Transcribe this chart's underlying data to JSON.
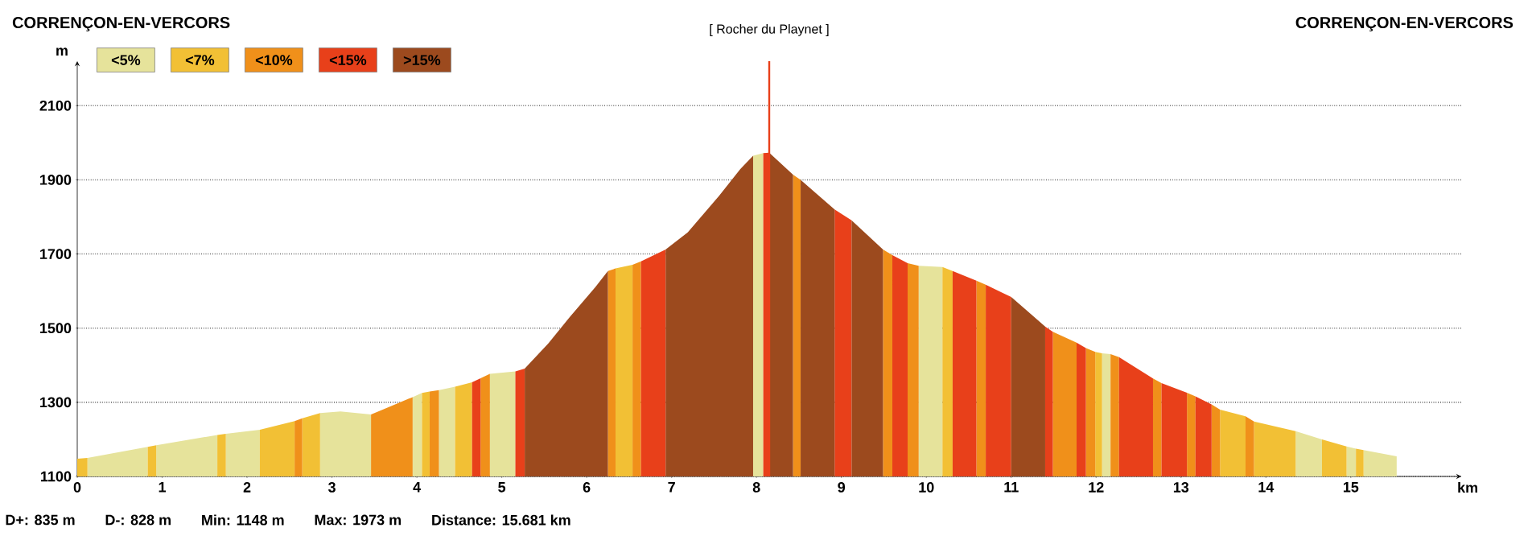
{
  "chart_data": {
    "type": "area",
    "xlabel": "km",
    "ylabel": "m",
    "xlim": [
      0,
      16.3
    ],
    "ylim": [
      1100,
      2220
    ],
    "xticks": [
      0,
      1,
      2,
      3,
      4,
      5,
      6,
      7,
      8,
      9,
      10,
      11,
      12,
      13,
      14,
      15
    ],
    "yticks": [
      1100,
      1300,
      1500,
      1700,
      1900,
      2100
    ],
    "grid": "y",
    "legend": "top left",
    "series": [
      {
        "name": "<5%",
        "color": "#e6e39b",
        "x": [
          0.12,
          0.83,
          null,
          0.93,
          1.65,
          null,
          1.75,
          2.15,
          null,
          2.86,
          3.1,
          3.46,
          null,
          3.95,
          4.06,
          null,
          4.26,
          4.45,
          null,
          4.86,
          5.16,
          null,
          7.96,
          8.08,
          null,
          9.91,
          10.19,
          null,
          12.07,
          12.17,
          null,
          14.35,
          14.66,
          null,
          14.95,
          15.06,
          null,
          15.15,
          15.54
        ],
        "values": [
          1150,
          1180,
          null,
          1184,
          1212,
          null,
          1215,
          1226,
          null,
          1271,
          1275,
          1267,
          null,
          1314,
          1325,
          null,
          1333,
          1342,
          null,
          1377,
          1383,
          null,
          1965,
          1972,
          null,
          1668,
          1665,
          null,
          1432,
          1430,
          null,
          1222,
          1200,
          null,
          1181,
          1175,
          null,
          1171,
          1154
        ]
      },
      {
        "name": "<7%",
        "color": "#f2c035",
        "x": [
          0,
          0.12,
          null,
          0.83,
          0.93,
          null,
          1.65,
          1.75,
          null,
          2.15,
          2.56,
          null,
          2.65,
          2.86,
          null,
          4.06,
          4.15,
          null,
          4.45,
          4.65,
          null,
          6.34,
          6.54,
          null,
          10.19,
          10.31,
          null,
          11.99,
          12.07,
          null,
          13.46,
          13.76,
          null,
          13.86,
          14.35,
          null,
          14.66,
          14.95,
          null,
          15.06,
          15.15
        ],
        "values": [
          1148,
          1150,
          null,
          1180,
          1184,
          null,
          1212,
          1215,
          null,
          1226,
          1249,
          null,
          1257,
          1271,
          null,
          1325,
          1329,
          null,
          1342,
          1354,
          null,
          1661,
          1671,
          null,
          1665,
          1654,
          null,
          1436,
          1432,
          null,
          1280,
          1262,
          null,
          1248,
          1222,
          null,
          1200,
          1181,
          null,
          1175,
          1171
        ]
      },
      {
        "name": "<10%",
        "color": "#f0901a",
        "x": [
          2.56,
          2.65,
          null,
          3.46,
          3.95,
          null,
          4.15,
          4.26,
          null,
          4.75,
          4.86,
          null,
          6.25,
          6.34,
          null,
          6.54,
          6.64,
          null,
          8.43,
          8.52,
          null,
          9.49,
          9.6,
          null,
          9.78,
          9.91,
          null,
          10.59,
          10.7,
          null,
          11.49,
          11.77,
          null,
          11.88,
          11.99,
          null,
          12.17,
          12.27,
          null,
          12.67,
          12.77,
          null,
          13.07,
          13.17,
          null,
          13.36,
          13.46,
          null,
          13.76,
          13.86
        ],
        "values": [
          1249,
          1257,
          null,
          1267,
          1314,
          null,
          1329,
          1333,
          null,
          1365,
          1377,
          null,
          1654,
          1661,
          null,
          1671,
          1680,
          null,
          1914,
          1900,
          null,
          1712,
          1697,
          null,
          1675,
          1668,
          null,
          1628,
          1617,
          null,
          1490,
          1461,
          null,
          1446,
          1436,
          null,
          1430,
          1422,
          null,
          1364,
          1352,
          null,
          1326,
          1316,
          null,
          1294,
          1280,
          null,
          1262,
          1248
        ]
      },
      {
        "name": "<15%",
        "color": "#e8401a",
        "x": [
          4.65,
          4.75,
          null,
          5.16,
          5.27,
          null,
          6.64,
          6.93,
          null,
          8.08,
          8.15,
          null,
          8.92,
          9.12,
          null,
          9.6,
          9.78,
          null,
          10.31,
          10.59,
          null,
          10.7,
          10.9,
          11.0,
          null,
          11.4,
          11.49,
          null,
          11.77,
          11.88,
          null,
          12.27,
          12.67,
          null,
          12.77,
          13.07,
          null,
          13.17,
          13.36
        ],
        "values": [
          1354,
          1365,
          null,
          1383,
          1391,
          null,
          1680,
          1712,
          null,
          1972,
          1973,
          null,
          1820,
          1791,
          null,
          1697,
          1675,
          null,
          1654,
          1628,
          null,
          1617,
          1595,
          1584,
          null,
          1504,
          1490,
          null,
          1461,
          1446,
          null,
          1422,
          1364,
          null,
          1352,
          1326,
          null,
          1316,
          1294
        ]
      },
      {
        "name": ">15%",
        "color": "#9c4a1e",
        "x": [
          5.27,
          5.55,
          5.8,
          6.1,
          6.25,
          null,
          6.93,
          7.19,
          7.56,
          7.81,
          7.96,
          null,
          8.15,
          8.43,
          null,
          8.52,
          8.92,
          null,
          9.12,
          9.49,
          null,
          11.0,
          11.4
        ],
        "values": [
          1391,
          1459,
          1530,
          1610,
          1654,
          null,
          1712,
          1758,
          1857,
          1929,
          1965,
          null,
          1973,
          1914,
          null,
          1900,
          1820,
          null,
          1791,
          1712,
          null,
          1584,
          1504
        ]
      }
    ],
    "ref_lines": [
      {
        "axis": "x",
        "value": 8.15,
        "label": "[ Rocher du Playnet ]",
        "color": "#e8401a"
      }
    ],
    "annotations": [
      "CORRENÇON-EN-VERCORS",
      "CORRENÇON-EN-VERCORS",
      "D+: 835 m",
      "D-: 828 m",
      "Min: 1148 m",
      "Max: 1973 m",
      "Distance: 15.681 km"
    ]
  }
}
